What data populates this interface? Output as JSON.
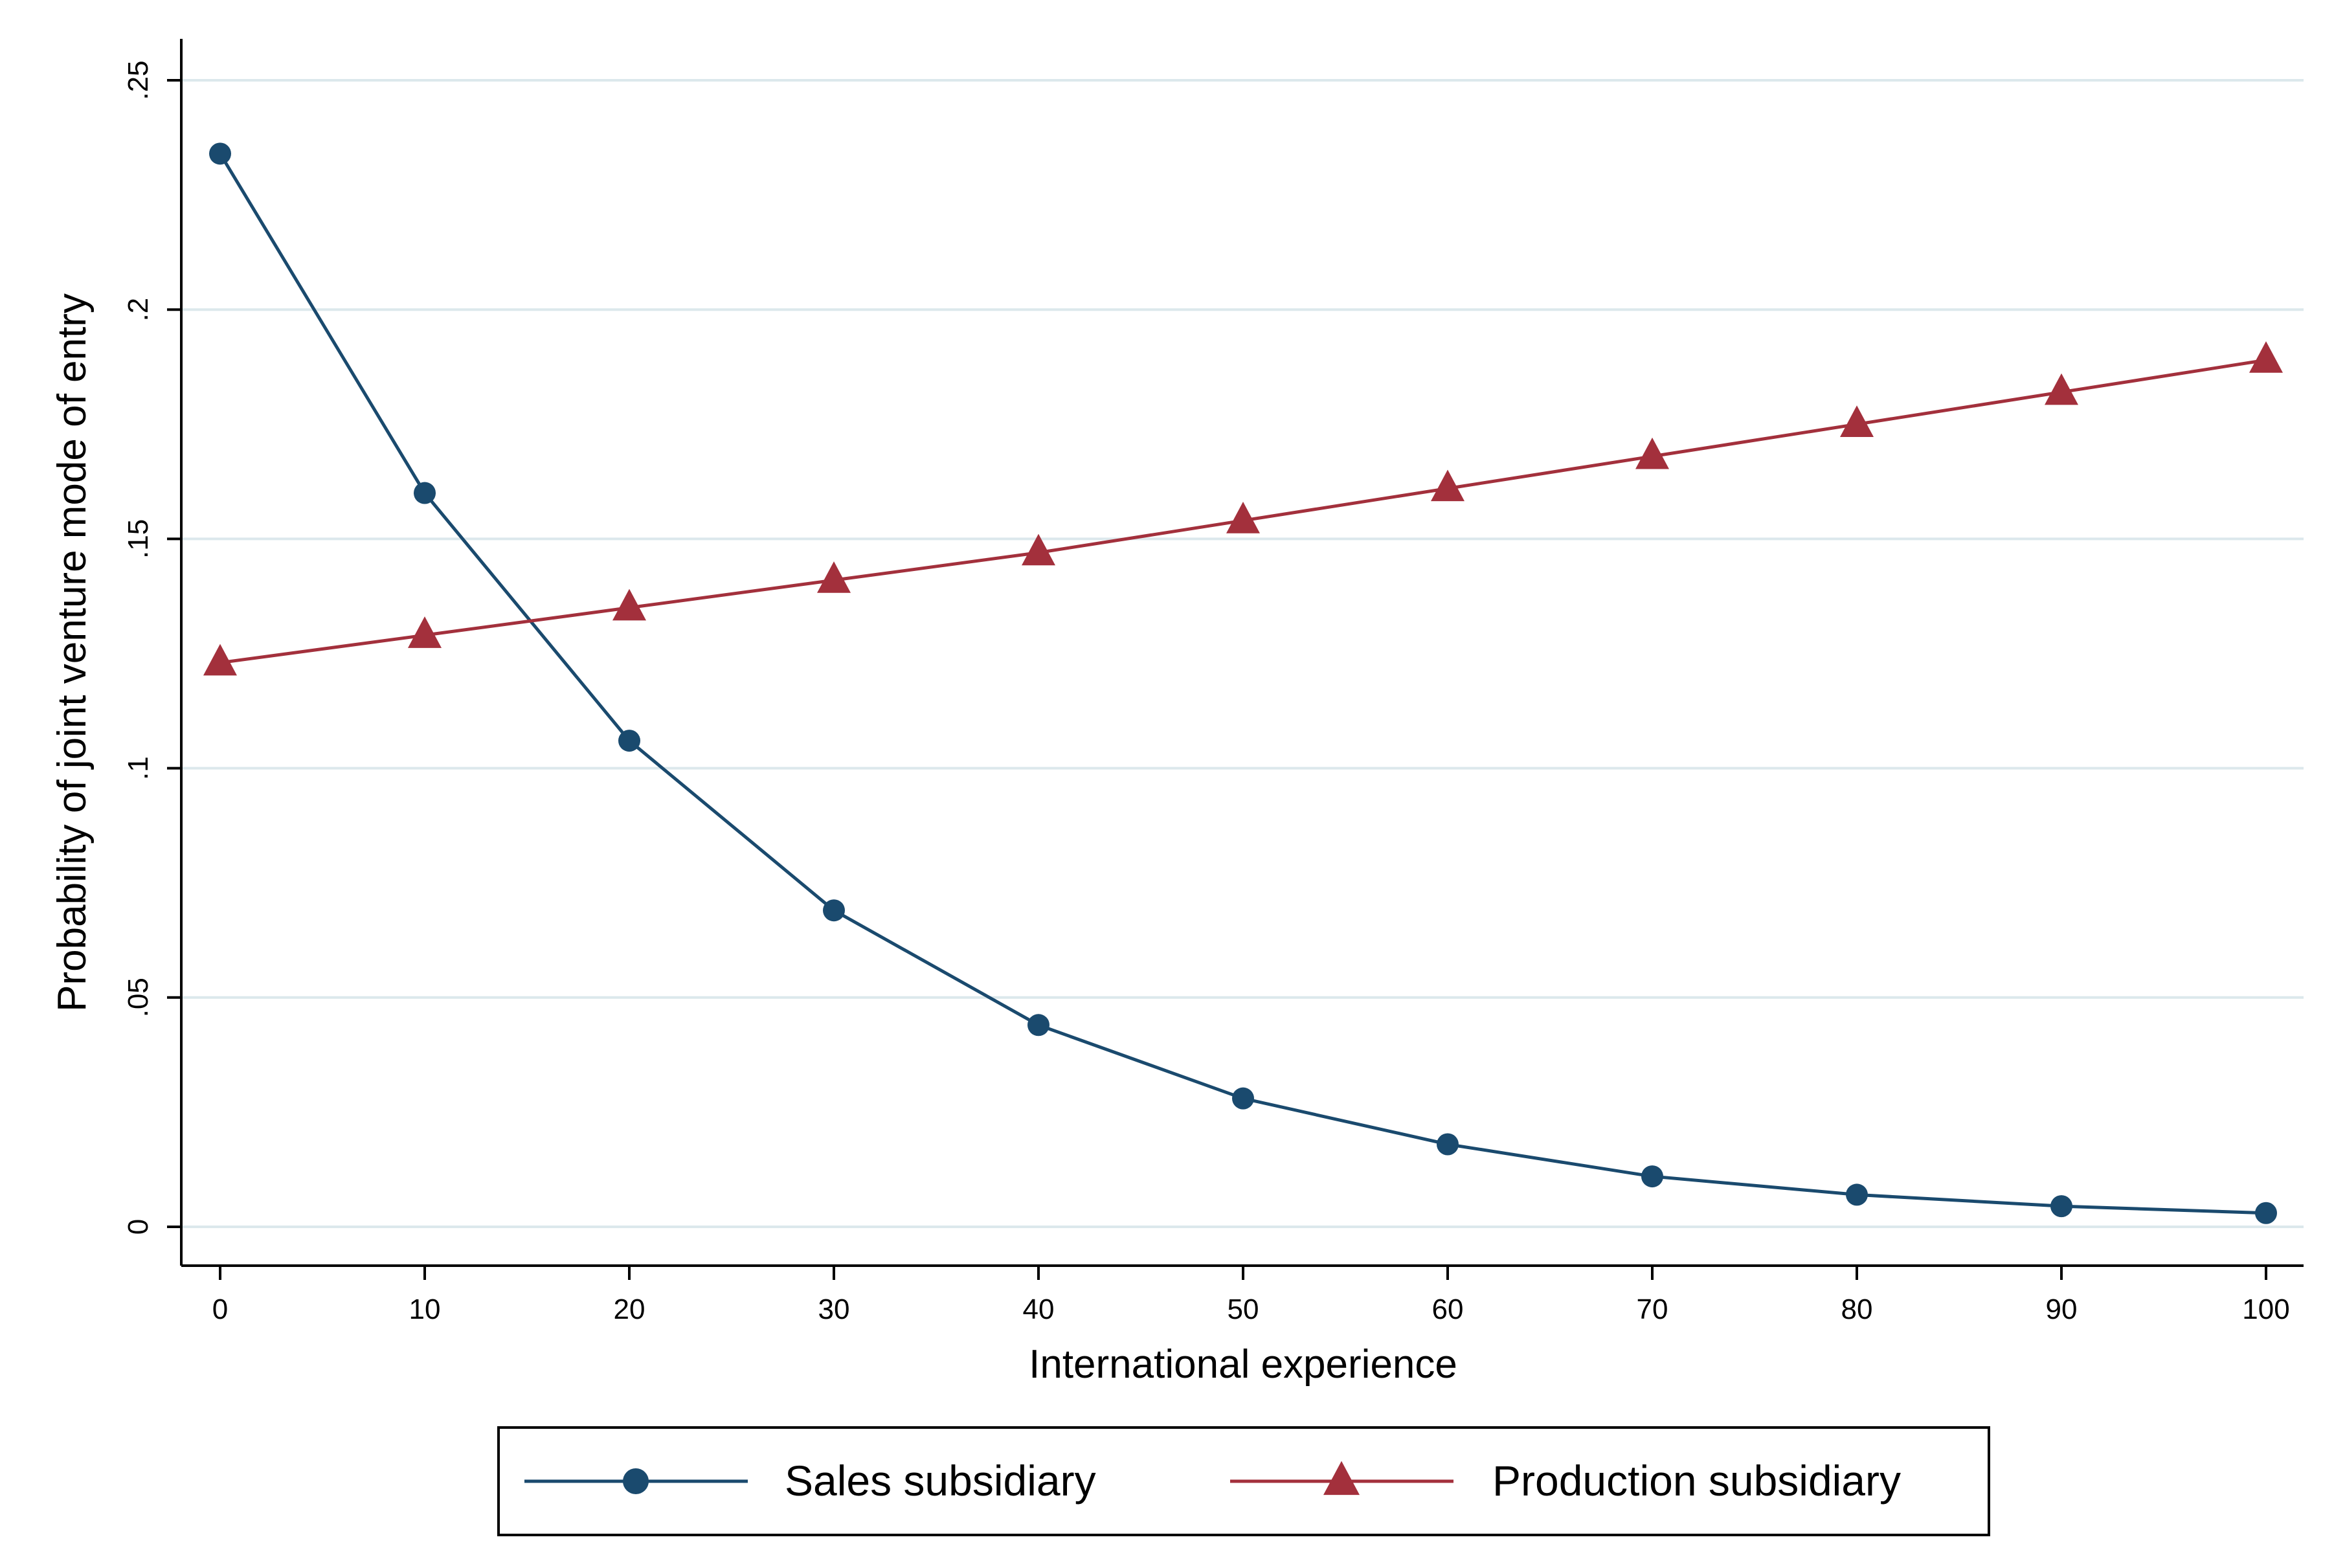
{
  "chart_data": {
    "type": "line",
    "title": "",
    "xlabel": "International experience",
    "ylabel": "Probability of joint venture mode of entry",
    "x": [
      0,
      10,
      20,
      30,
      40,
      50,
      60,
      70,
      80,
      90,
      100
    ],
    "xlim": [
      0,
      100
    ],
    "ylim": [
      0,
      0.25
    ],
    "xticks": [
      "0",
      "10",
      "20",
      "30",
      "40",
      "50",
      "60",
      "70",
      "80",
      "90",
      "100"
    ],
    "yticks": [
      "0",
      ".05",
      ".1",
      ".15",
      ".2",
      ".25"
    ],
    "grid": true,
    "legend_position": "bottom",
    "series": [
      {
        "name": "Sales subsidiary",
        "marker": "circle",
        "color": "#1a4a6e",
        "values": [
          0.234,
          0.16,
          0.106,
          0.069,
          0.044,
          0.028,
          0.018,
          0.011,
          0.007,
          0.0045,
          0.003
        ]
      },
      {
        "name": "Production subsidiary",
        "marker": "triangle",
        "color": "#a3303c",
        "values": [
          0.123,
          0.129,
          0.135,
          0.141,
          0.147,
          0.154,
          0.161,
          0.168,
          0.175,
          0.182,
          0.189
        ]
      }
    ]
  },
  "style": {
    "grid_color": "#dce8ec",
    "axis_color": "#000000",
    "background": "#ffffff"
  }
}
